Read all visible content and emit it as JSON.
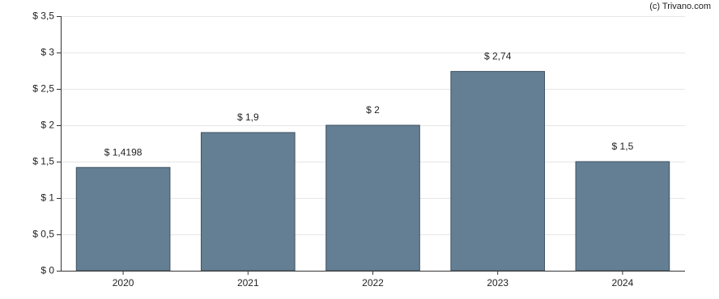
{
  "chart_data": {
    "type": "bar",
    "source": "(c) Trivano.com",
    "categories": [
      "2020",
      "2021",
      "2022",
      "2023",
      "2024"
    ],
    "values": [
      1.4198,
      1.9,
      2,
      2.74,
      1.5
    ],
    "value_labels": [
      "$ 1,4198",
      "$ 1,9",
      "$ 2",
      "$ 2,74",
      "$ 1,5"
    ],
    "color": "#647f94",
    "ylim": [
      0,
      3.5
    ],
    "yticks": [
      {
        "value": 0,
        "label": "$ 0"
      },
      {
        "value": 0.5,
        "label": "$ 0,5"
      },
      {
        "value": 1,
        "label": "$ 1"
      },
      {
        "value": 1.5,
        "label": "$ 1,5"
      },
      {
        "value": 2,
        "label": "$ 2"
      },
      {
        "value": 2.5,
        "label": "$ 2,5"
      },
      {
        "value": 3,
        "label": "$ 3"
      },
      {
        "value": 3.5,
        "label": "$ 3,5"
      }
    ],
    "grid": true
  }
}
